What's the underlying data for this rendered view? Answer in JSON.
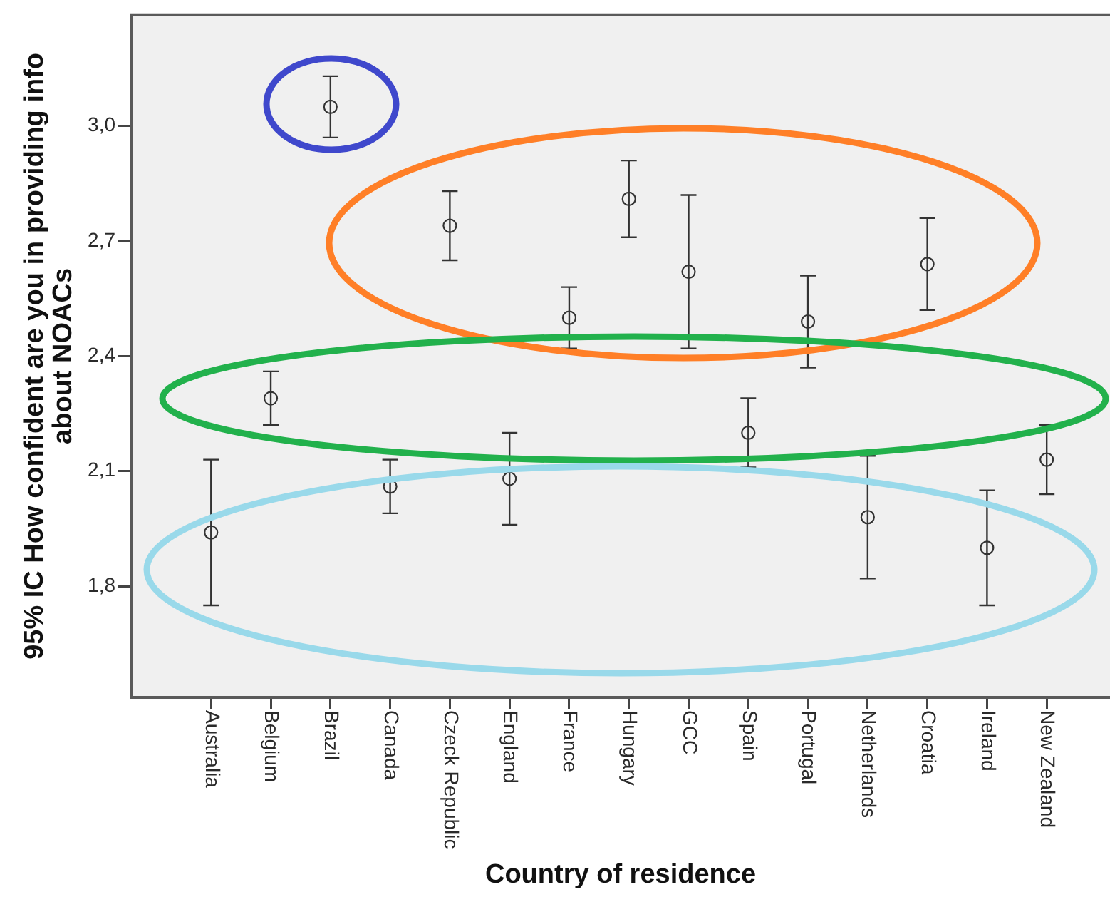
{
  "chart_data": {
    "type": "scatter",
    "xlabel": "Country of residence",
    "ylabel": "95% IC How confident are you in providing info about NOACs",
    "categories": [
      "Australia",
      "Belgium",
      "Brazil",
      "Canada",
      "Czeck Republic",
      "England",
      "France",
      "Hungary",
      "GCC",
      "Spain",
      "Portugal",
      "Netherlands",
      "Croatia",
      "Ireland",
      "New Zealand"
    ],
    "values": [
      1.94,
      2.29,
      3.05,
      2.06,
      2.74,
      2.08,
      2.5,
      2.81,
      2.62,
      2.2,
      2.49,
      1.98,
      2.64,
      1.9,
      2.13
    ],
    "errors": [
      0.19,
      0.07,
      0.08,
      0.07,
      0.09,
      0.12,
      0.08,
      0.1,
      0.2,
      0.09,
      0.12,
      0.16,
      0.12,
      0.15,
      0.09
    ],
    "color": "#333333",
    "marker": "circle",
    "ylim": [
      1.51,
      3.29
    ],
    "yticks": [
      {
        "value": 1.8,
        "label": "1,8"
      },
      {
        "value": 2.1,
        "label": "2,1"
      },
      {
        "value": 2.4,
        "label": "2,4"
      },
      {
        "value": 2.7,
        "label": "2,7"
      },
      {
        "value": 3.0,
        "label": "3,0"
      }
    ],
    "grid": false,
    "legend": false
  }
}
